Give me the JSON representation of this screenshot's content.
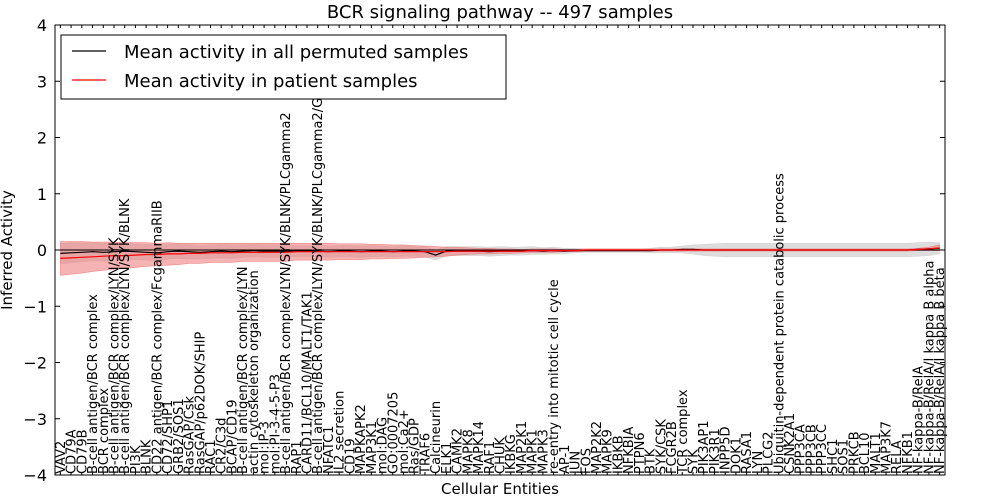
{
  "chart_data": {
    "type": "line",
    "title": "BCR signaling pathway -- 497 samples",
    "xlabel": "Cellular Entities",
    "ylabel": "Inferred Activity",
    "ylim": [
      -4,
      4
    ],
    "yticks": [
      -4,
      -3,
      -2,
      -1,
      0,
      1,
      2,
      3,
      4
    ],
    "ytick_labels": [
      "−4",
      "−3",
      "−2",
      "−1",
      "0",
      "1",
      "2",
      "3",
      "4"
    ],
    "legend_position": "top-left",
    "categories": [
      "VAV2",
      "CD79A",
      "CD79B",
      "B-cell antigen/BCR complex",
      "BCR complex",
      "B-cell antigen/BCR complex/LYN/SYK",
      "B-cell antigen/BCR complex/LYN/SYK/BLNK",
      "PI3K",
      "BLNK",
      "CD22 antigen/BCR complex/FcgammaRIIB",
      "CD72/SHP1",
      "GRB2/SOS1",
      "RasGAP/Csk",
      "RasGAP/p62DOK/SHIP",
      "RAC1",
      "CR2/C3d",
      "BCAP/CD19",
      "B-cell antigen/BCR complex/LYN",
      "actin cytoskeleton organization",
      "mol:IP-3",
      "mol:PI-3-4-5-P3",
      "B-cell antigen/BCR complex/LYN/SYK/BLNK/PLCgamma2",
      "RAP1",
      "CARD11/BCL10/MALT1/TAK1",
      "B-cell antigen/BCR complex/LYN/SYK/BLNK/PLCgamma2/GRB2",
      "NFATC1",
      "IL2 secretion",
      "CD19",
      "MAPKAPK2",
      "MAP3K1",
      "mol:DAG",
      "GO:0007205",
      "mol:Ca2+",
      "Ras/GDP",
      "TRAF6",
      "Calcineurin",
      "ELK1",
      "CAMK2",
      "MAPK8",
      "MAPK14",
      "RAF1",
      "CHUK",
      "IKBKG",
      "MAP2K1",
      "MAPK1",
      "MAPK3",
      "re-entry into mitotic cell cycle",
      "AP-1",
      "JUN",
      "FOS",
      "MAP2K2",
      "MAPK9",
      "IKBKB",
      "NFKBIA",
      "PTPN6",
      "BTK",
      "SYK/CSK",
      "FCGR2B",
      "TCR complex",
      "SYK",
      "PIK3AP1",
      "PIK3R1",
      "INPP5D",
      "DOK1",
      "RASA1",
      "LYN",
      "PLCG2",
      "Ubiquitin-dependent protein catabolic process",
      "CSNK2A1",
      "PPP3CA",
      "PPP3CB",
      "PPP3CC",
      "SHC1",
      "SOS1",
      "PRKCB",
      "BCL10",
      "MALT1",
      "MAP3K7",
      "RELA",
      "NFKB1",
      "NF-kappa-B/RelA",
      "NF-kappa-B/RelA/I kappa B alpha",
      "NF-kappa-B/RelA/I kappa B beta"
    ],
    "series": [
      {
        "name": "Mean activity in all permuted samples",
        "color": "#000000",
        "band_color": "#d2d2d2",
        "values": [
          -0.06,
          -0.05,
          -0.04,
          -0.03,
          -0.04,
          -0.03,
          -0.02,
          -0.03,
          -0.04,
          -0.05,
          -0.03,
          -0.02,
          -0.03,
          -0.04,
          -0.03,
          -0.02,
          -0.03,
          -0.02,
          -0.01,
          -0.02,
          -0.02,
          -0.02,
          -0.02,
          -0.02,
          -0.02,
          -0.03,
          -0.02,
          -0.02,
          -0.03,
          -0.02,
          -0.02,
          -0.03,
          -0.02,
          -0.02,
          -0.03,
          -0.09,
          -0.02,
          -0.02,
          -0.02,
          -0.02,
          -0.03,
          -0.02,
          -0.02,
          -0.02,
          -0.01,
          -0.02,
          -0.01,
          -0.02,
          -0.01,
          -0.01,
          -0.01,
          -0.01,
          -0.01,
          -0.01,
          -0.01,
          -0.01,
          0.0,
          0.0,
          0.01,
          0.01,
          0.0,
          0.0,
          0.0,
          0.0,
          0.0,
          0.0,
          0.0,
          0.0,
          0.0,
          0.0,
          0.0,
          0.0,
          0.0,
          0.0,
          0.0,
          0.0,
          0.0,
          0.0,
          0.0,
          0.0,
          0.01,
          0.02,
          0.03
        ],
        "band_half": [
          0.18,
          0.18,
          0.17,
          0.16,
          0.16,
          0.15,
          0.15,
          0.14,
          0.14,
          0.14,
          0.13,
          0.13,
          0.13,
          0.12,
          0.12,
          0.12,
          0.12,
          0.11,
          0.11,
          0.11,
          0.11,
          0.11,
          0.1,
          0.1,
          0.1,
          0.1,
          0.1,
          0.1,
          0.1,
          0.1,
          0.09,
          0.09,
          0.09,
          0.09,
          0.09,
          0.09,
          0.08,
          0.08,
          0.08,
          0.08,
          0.08,
          0.08,
          0.07,
          0.07,
          0.07,
          0.06,
          0.06,
          0.05,
          0.04,
          0.03,
          0.03,
          0.03,
          0.03,
          0.03,
          0.03,
          0.04,
          0.05,
          0.05,
          0.06,
          0.08,
          0.1,
          0.11,
          0.12,
          0.12,
          0.12,
          0.12,
          0.12,
          0.12,
          0.12,
          0.12,
          0.12,
          0.12,
          0.12,
          0.12,
          0.12,
          0.12,
          0.12,
          0.12,
          0.12,
          0.12,
          0.12,
          0.12,
          0.1
        ]
      },
      {
        "name": "Mean activity in patient samples",
        "color": "#ff0000",
        "band_color": "#f08080",
        "values": [
          -0.15,
          -0.14,
          -0.13,
          -0.12,
          -0.11,
          -0.1,
          -0.1,
          -0.09,
          -0.08,
          -0.08,
          -0.07,
          -0.07,
          -0.06,
          -0.06,
          -0.05,
          -0.05,
          -0.05,
          -0.04,
          -0.04,
          -0.04,
          -0.04,
          -0.04,
          -0.03,
          -0.03,
          -0.03,
          -0.03,
          -0.03,
          -0.03,
          -0.03,
          -0.03,
          -0.03,
          -0.03,
          -0.03,
          -0.03,
          -0.03,
          -0.03,
          -0.03,
          -0.02,
          -0.02,
          -0.02,
          -0.02,
          -0.02,
          -0.02,
          -0.02,
          -0.01,
          -0.01,
          -0.01,
          -0.01,
          -0.01,
          0.0,
          0.0,
          0.0,
          0.0,
          0.0,
          0.0,
          0.0,
          0.0,
          0.0,
          0.0,
          0.0,
          0.0,
          0.0,
          0.0,
          0.0,
          0.0,
          0.0,
          0.0,
          0.0,
          0.0,
          0.0,
          0.0,
          0.0,
          0.0,
          0.0,
          0.0,
          0.0,
          0.0,
          0.0,
          0.0,
          0.0,
          0.01,
          0.02,
          0.04
        ],
        "band_half": [
          0.3,
          0.29,
          0.28,
          0.26,
          0.25,
          0.24,
          0.23,
          0.22,
          0.21,
          0.2,
          0.2,
          0.19,
          0.18,
          0.18,
          0.17,
          0.17,
          0.17,
          0.16,
          0.16,
          0.16,
          0.16,
          0.16,
          0.15,
          0.15,
          0.15,
          0.15,
          0.14,
          0.14,
          0.14,
          0.13,
          0.13,
          0.12,
          0.12,
          0.11,
          0.1,
          0.09,
          0.08,
          0.07,
          0.06,
          0.05,
          0.05,
          0.04,
          0.04,
          0.03,
          0.03,
          0.03,
          0.03,
          0.02,
          0.02,
          0.02,
          0.02,
          0.02,
          0.02,
          0.02,
          0.02,
          0.02,
          0.02,
          0.02,
          0.02,
          0.02,
          0.02,
          0.02,
          0.02,
          0.02,
          0.02,
          0.02,
          0.02,
          0.02,
          0.02,
          0.02,
          0.02,
          0.02,
          0.02,
          0.02,
          0.02,
          0.02,
          0.02,
          0.02,
          0.02,
          0.02,
          0.02,
          0.03,
          0.05
        ]
      }
    ]
  }
}
